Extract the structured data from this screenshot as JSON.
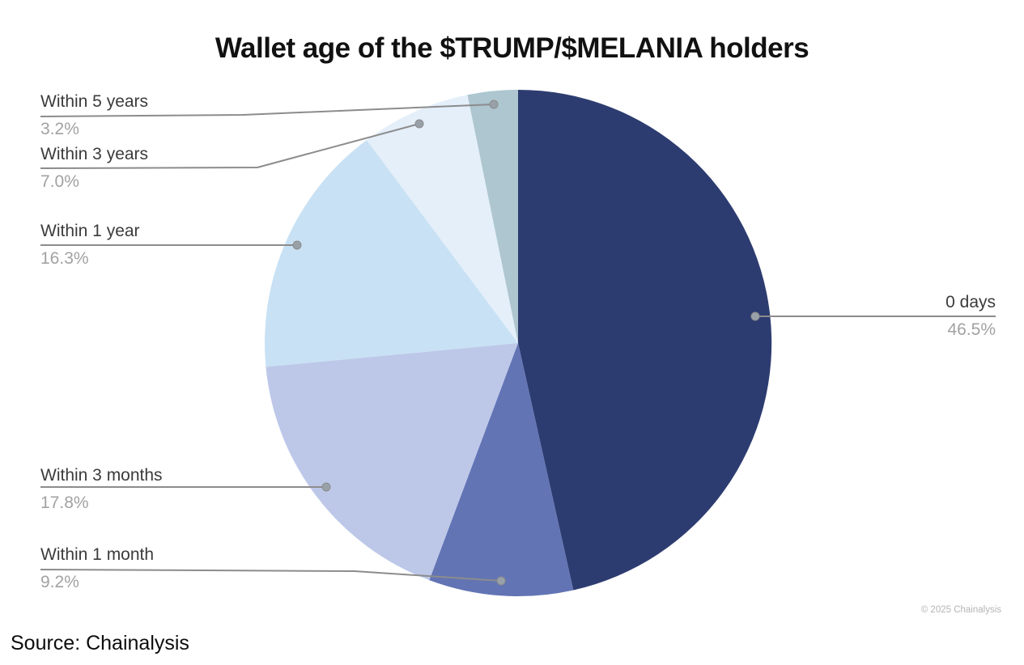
{
  "page": {
    "background": "#ffffff",
    "source_note": "Source: Chainalysis",
    "copyright": "© 2025 Chainalysis"
  },
  "chart_data": {
    "type": "pie",
    "title": "Wallet age of the $TRUMP/$MELANIA holders",
    "legend_position": "callout-labels",
    "start_angle_deg": 0,
    "direction": "clockwise",
    "slices": [
      {
        "id": "0-days",
        "label": "0 days",
        "value": 46.5,
        "percent": "46.5%",
        "color": "#2d3c70"
      },
      {
        "id": "within-1-month",
        "label": "Within 1 month",
        "value": 9.2,
        "percent": "9.2%",
        "color": "#6274b4"
      },
      {
        "id": "within-3-months",
        "label": "Within 3 months",
        "value": 17.8,
        "percent": "17.8%",
        "color": "#bdc8e9"
      },
      {
        "id": "within-1-year",
        "label": "Within 1 year",
        "value": 16.3,
        "percent": "16.3%",
        "color": "#c8e1f4"
      },
      {
        "id": "within-3-years",
        "label": "Within 3 years",
        "value": 7.0,
        "percent": "7.0%",
        "color": "#e4effa"
      },
      {
        "id": "within-5-years",
        "label": "Within 5 years",
        "value": 3.2,
        "percent": "3.2%",
        "color": "#adc6cf"
      }
    ],
    "colors": {
      "label_text": "#3b3b3b",
      "percent_text": "#a2a2a2",
      "leader_line": "#8c8c8c",
      "title_text": "#111111"
    }
  }
}
